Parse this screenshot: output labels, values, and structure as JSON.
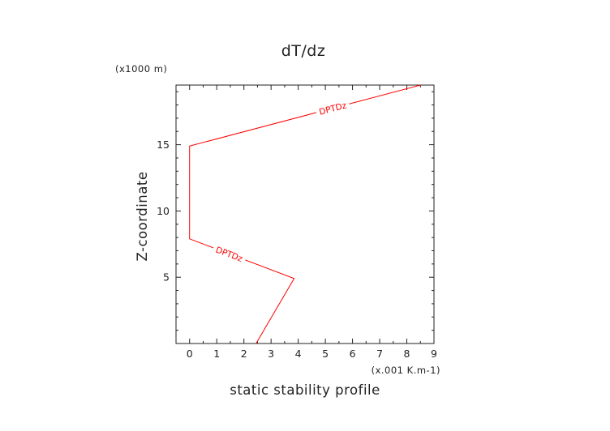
{
  "chart_data": {
    "type": "line",
    "title": "dT/dz",
    "xlabel": "static stability profile",
    "ylabel": "Z-coordinate",
    "x_unit": "(x.001 K.m-1)",
    "y_unit": "(x1000 m)",
    "xlim": [
      -0.5,
      9
    ],
    "ylim": [
      0,
      19.5
    ],
    "x_ticks": [
      "0",
      "1",
      "2",
      "3",
      "4",
      "5",
      "6",
      "7",
      "8",
      "9"
    ],
    "y_ticks": [
      "5",
      "10",
      "15"
    ],
    "grid": false,
    "series": [
      {
        "name": "DPTDz",
        "color": "#ff0000",
        "points": [
          {
            "x": 2.45,
            "y": 0
          },
          {
            "x": 3.85,
            "y": 4.9
          },
          {
            "x": 0.0,
            "y": 7.9
          },
          {
            "x": 0.0,
            "y": 14.9
          },
          {
            "x": 8.5,
            "y": 19.5
          }
        ],
        "inline_labels": [
          "DPTDz",
          "DPTDz"
        ]
      }
    ]
  }
}
